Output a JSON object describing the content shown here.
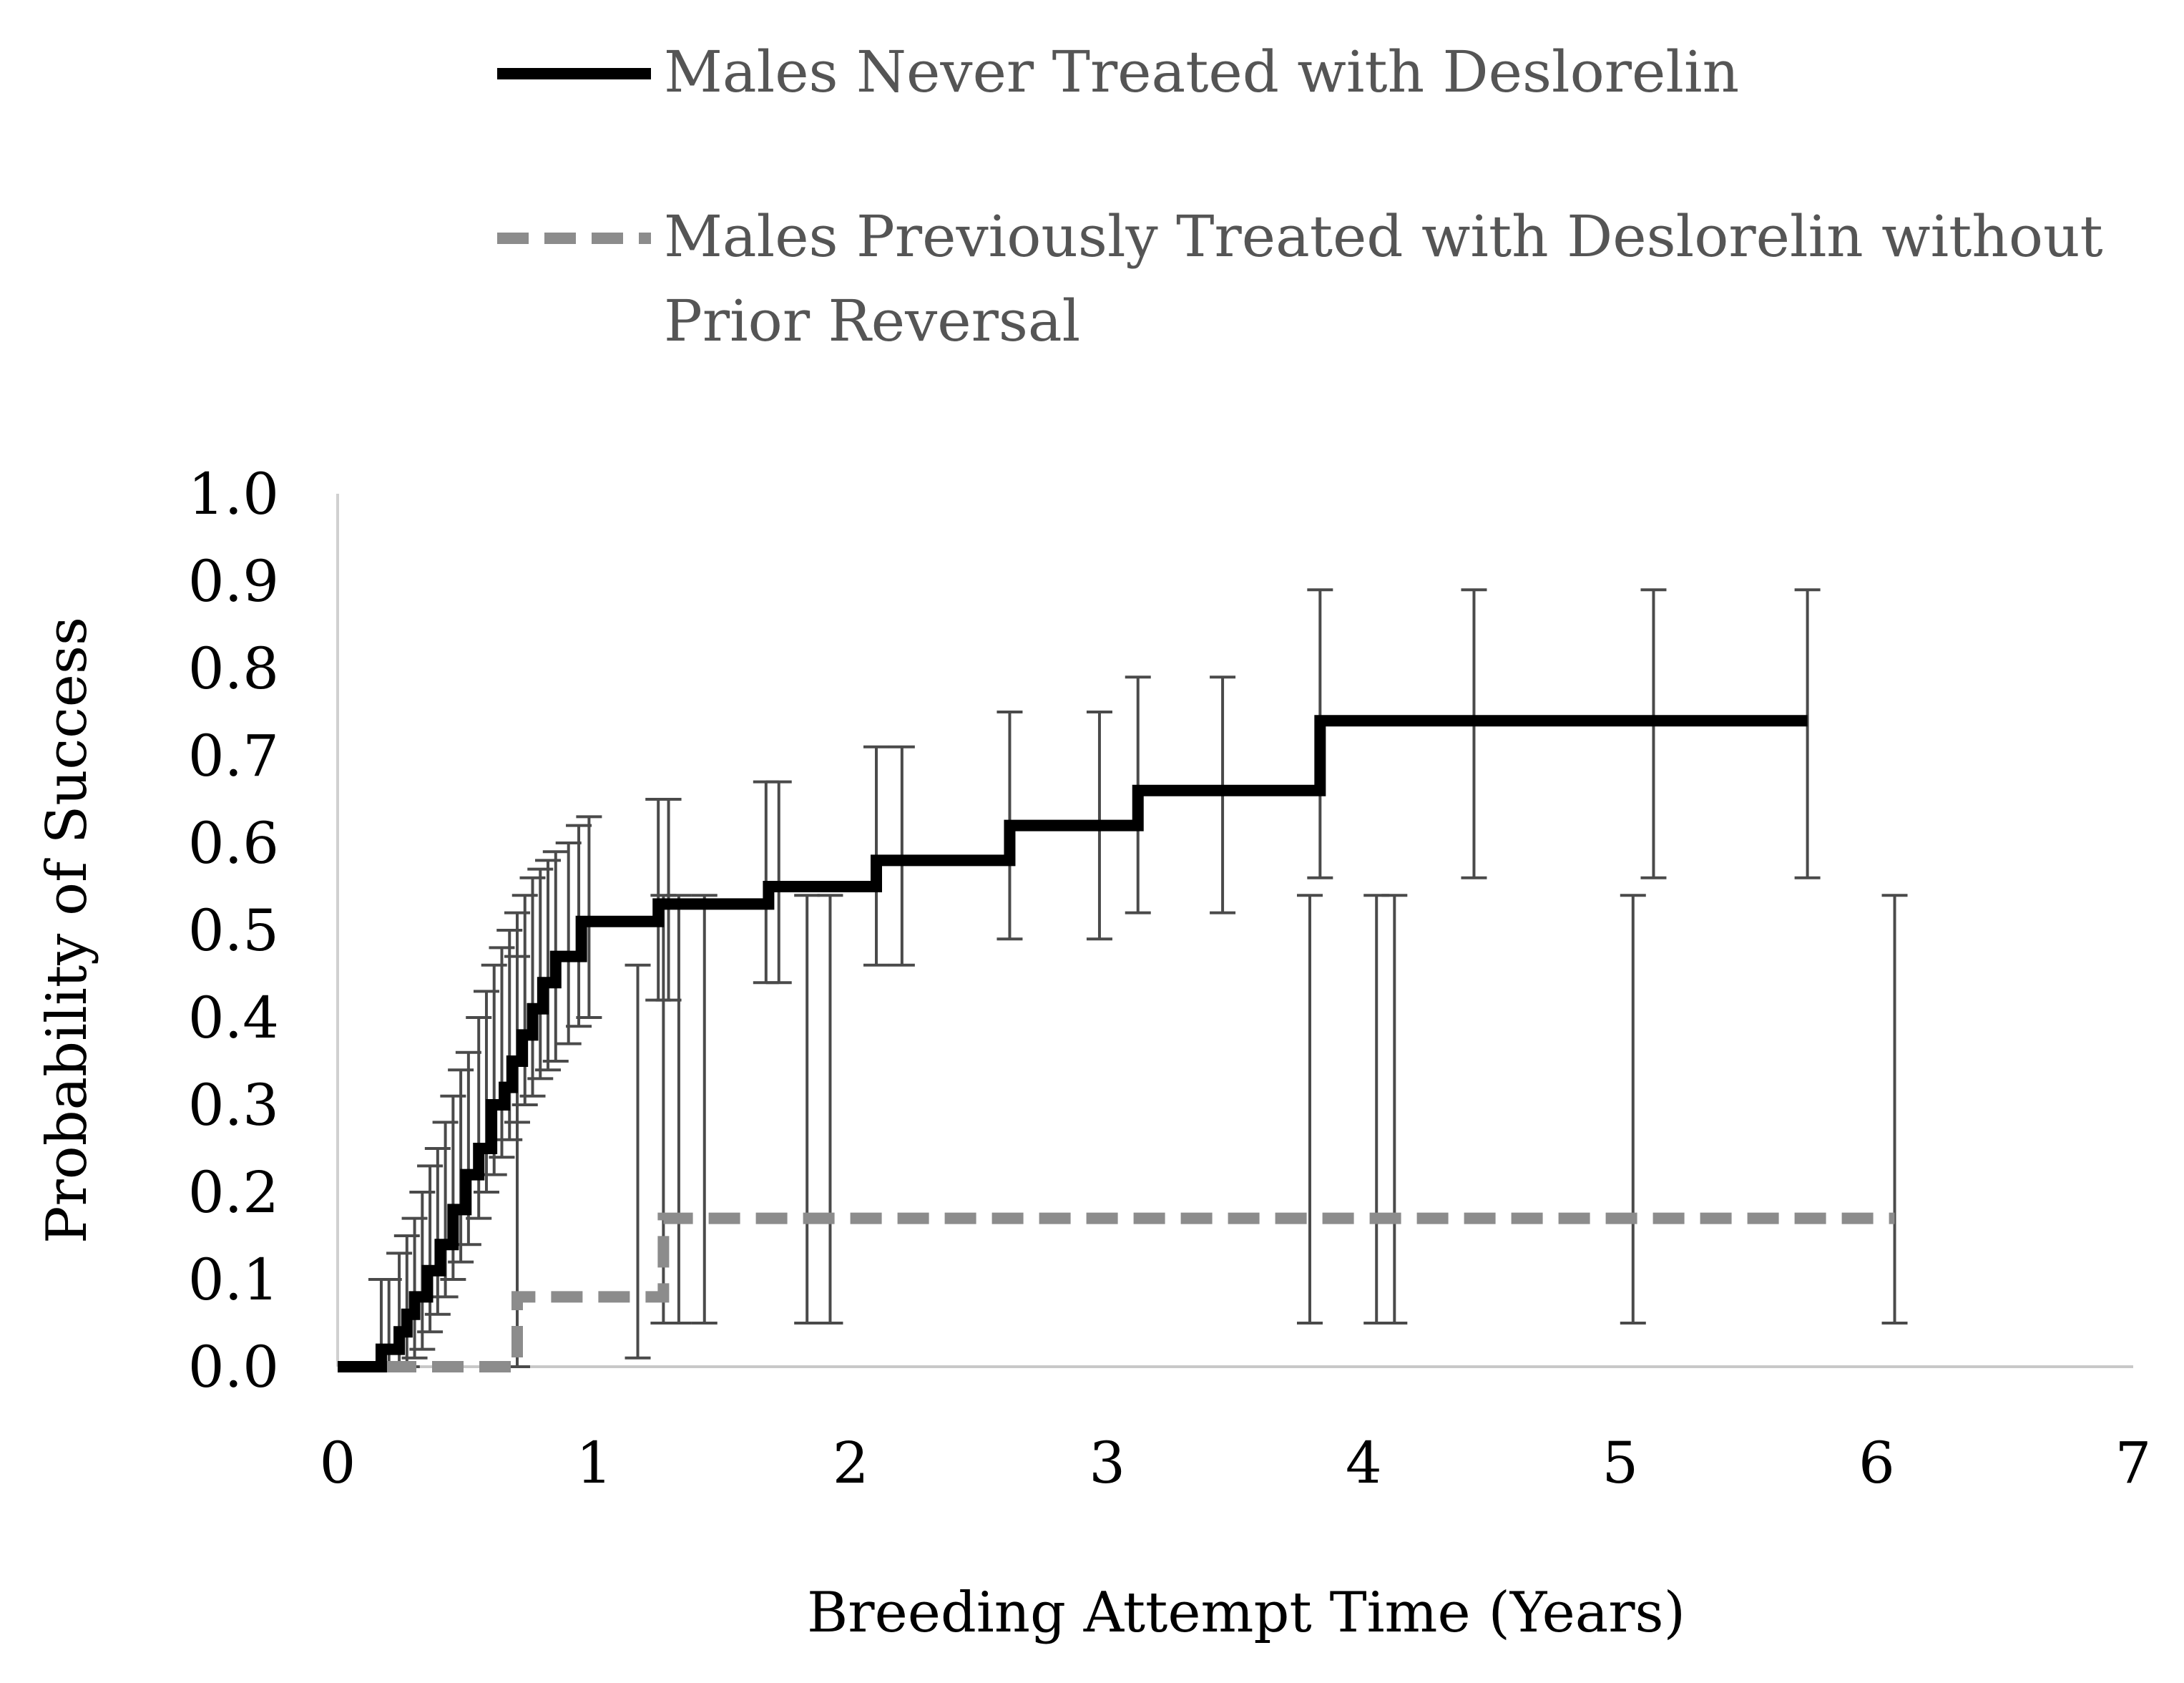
{
  "chart_data": {
    "type": "line",
    "subtype": "kaplan-meier step with error bars",
    "title": "",
    "xlabel": "Breeding Attempt Time (Years)",
    "ylabel": "Probability of Success",
    "xlim": [
      0,
      7
    ],
    "ylim": [
      0,
      1.0
    ],
    "x_ticks": [
      "0",
      "1",
      "2",
      "3",
      "4",
      "5",
      "6",
      "7"
    ],
    "y_ticks": [
      "0.0",
      "0.1",
      "0.2",
      "0.3",
      "0.4",
      "0.5",
      "0.6",
      "0.7",
      "0.8",
      "0.9",
      "1.0"
    ],
    "legend_position": "top",
    "series": [
      {
        "name": "Males Never Treated with Deslorelin",
        "legend_lines": [
          "Males Never Treated with Deslorelin"
        ],
        "color": "#000000",
        "style": "solid",
        "x": [
          0.0,
          0.17,
          0.24,
          0.27,
          0.3,
          0.35,
          0.4,
          0.45,
          0.5,
          0.55,
          0.6,
          0.65,
          0.68,
          0.72,
          0.76,
          0.8,
          0.85,
          0.9,
          0.95,
          1.25,
          1.68,
          2.1,
          2.62,
          3.12,
          3.83,
          5.73
        ],
        "y": [
          0.0,
          0.02,
          0.04,
          0.06,
          0.08,
          0.11,
          0.14,
          0.18,
          0.22,
          0.25,
          0.3,
          0.32,
          0.35,
          0.38,
          0.41,
          0.44,
          0.47,
          0.47,
          0.51,
          0.53,
          0.55,
          0.58,
          0.62,
          0.66,
          0.74,
          0.74
        ],
        "error_bars": [
          {
            "x": 0.17,
            "low": 0.0,
            "high": 0.1
          },
          {
            "x": 0.2,
            "low": 0.0,
            "high": 0.1
          },
          {
            "x": 0.24,
            "low": 0.0,
            "high": 0.13
          },
          {
            "x": 0.27,
            "low": 0.0,
            "high": 0.15
          },
          {
            "x": 0.3,
            "low": 0.01,
            "high": 0.17
          },
          {
            "x": 0.33,
            "low": 0.02,
            "high": 0.2
          },
          {
            "x": 0.36,
            "low": 0.04,
            "high": 0.23
          },
          {
            "x": 0.39,
            "low": 0.06,
            "high": 0.25
          },
          {
            "x": 0.42,
            "low": 0.08,
            "high": 0.28
          },
          {
            "x": 0.45,
            "low": 0.1,
            "high": 0.31
          },
          {
            "x": 0.48,
            "low": 0.12,
            "high": 0.34
          },
          {
            "x": 0.51,
            "low": 0.14,
            "high": 0.36
          },
          {
            "x": 0.55,
            "low": 0.17,
            "high": 0.4
          },
          {
            "x": 0.58,
            "low": 0.2,
            "high": 0.43
          },
          {
            "x": 0.61,
            "low": 0.22,
            "high": 0.46
          },
          {
            "x": 0.64,
            "low": 0.24,
            "high": 0.48
          },
          {
            "x": 0.67,
            "low": 0.26,
            "high": 0.5
          },
          {
            "x": 0.7,
            "low": 0.28,
            "high": 0.52
          },
          {
            "x": 0.73,
            "low": 0.3,
            "high": 0.54
          },
          {
            "x": 0.76,
            "low": 0.31,
            "high": 0.56
          },
          {
            "x": 0.79,
            "low": 0.33,
            "high": 0.57
          },
          {
            "x": 0.82,
            "low": 0.34,
            "high": 0.58
          },
          {
            "x": 0.85,
            "low": 0.35,
            "high": 0.59
          },
          {
            "x": 0.9,
            "low": 0.37,
            "high": 0.6
          },
          {
            "x": 0.94,
            "low": 0.39,
            "high": 0.62
          },
          {
            "x": 0.98,
            "low": 0.4,
            "high": 0.63
          },
          {
            "x": 1.25,
            "low": 0.42,
            "high": 0.65
          },
          {
            "x": 1.29,
            "low": 0.42,
            "high": 0.65
          },
          {
            "x": 1.67,
            "low": 0.44,
            "high": 0.67
          },
          {
            "x": 1.72,
            "low": 0.44,
            "high": 0.67
          },
          {
            "x": 2.1,
            "low": 0.46,
            "high": 0.71
          },
          {
            "x": 2.2,
            "low": 0.46,
            "high": 0.71
          },
          {
            "x": 2.62,
            "low": 0.49,
            "high": 0.75
          },
          {
            "x": 2.97,
            "low": 0.49,
            "high": 0.75
          },
          {
            "x": 3.12,
            "low": 0.52,
            "high": 0.79
          },
          {
            "x": 3.45,
            "low": 0.52,
            "high": 0.79
          },
          {
            "x": 3.83,
            "low": 0.56,
            "high": 0.89
          },
          {
            "x": 4.43,
            "low": 0.56,
            "high": 0.89
          },
          {
            "x": 5.13,
            "low": 0.56,
            "high": 0.89
          },
          {
            "x": 5.73,
            "low": 0.56,
            "high": 0.89
          }
        ]
      },
      {
        "name": "Males Previously Treated with Deslorelin without Prior Reversal",
        "legend_lines": [
          "Males Previously Treated with Deslorelin without",
          "Prior Reversal"
        ],
        "color": "#8c8c8c",
        "style": "dashed",
        "x": [
          0.0,
          0.7,
          1.27,
          6.07
        ],
        "y": [
          0.0,
          0.08,
          0.17,
          0.17
        ],
        "error_bars": [
          {
            "x": 0.7,
            "low": 0.0,
            "high": 0.47
          },
          {
            "x": 1.17,
            "low": 0.01,
            "high": 0.46
          },
          {
            "x": 1.27,
            "low": 0.05,
            "high": 0.54
          },
          {
            "x": 1.33,
            "low": 0.05,
            "high": 0.54
          },
          {
            "x": 1.43,
            "low": 0.05,
            "high": 0.54
          },
          {
            "x": 1.83,
            "low": 0.05,
            "high": 0.54
          },
          {
            "x": 1.92,
            "low": 0.05,
            "high": 0.54
          },
          {
            "x": 3.79,
            "low": 0.05,
            "high": 0.54
          },
          {
            "x": 4.05,
            "low": 0.05,
            "high": 0.54
          },
          {
            "x": 4.12,
            "low": 0.05,
            "high": 0.54
          },
          {
            "x": 5.05,
            "low": 0.05,
            "high": 0.54
          },
          {
            "x": 6.07,
            "low": 0.05,
            "high": 0.54
          }
        ]
      }
    ]
  }
}
